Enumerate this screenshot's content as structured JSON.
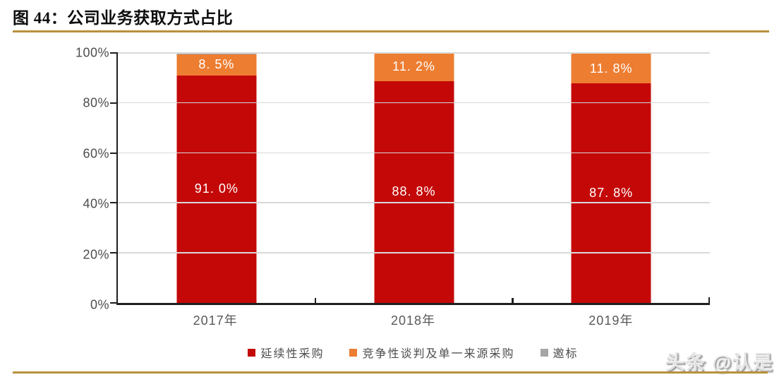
{
  "figure": {
    "title": "图 44：公司业务获取方式占比",
    "watermark": "头条 @认是"
  },
  "chart_data": {
    "type": "bar",
    "stacked": true,
    "title": "公司业务获取方式占比",
    "xlabel": "",
    "ylabel": "",
    "ylim": [
      0,
      100
    ],
    "grid": true,
    "legend_position": "bottom",
    "yticks": [
      "0%",
      "20%",
      "40%",
      "60%",
      "80%",
      "100%"
    ],
    "categories": [
      "2017年",
      "2018年",
      "2019年"
    ],
    "series": [
      {
        "name": "延续性采购",
        "color": "#c40808",
        "values": [
          91.0,
          88.8,
          87.8
        ],
        "labels": [
          "91. 0%",
          "88. 8%",
          "87. 8%"
        ]
      },
      {
        "name": "竞争性谈判及单一来源采购",
        "color": "#ed7d31",
        "values": [
          8.5,
          11.2,
          11.8
        ],
        "labels": [
          "8. 5%",
          "11. 2%",
          "11. 8%"
        ]
      },
      {
        "name": "邀标",
        "color": "#a6a6a6",
        "values": [
          0.5,
          0.0,
          0.4
        ],
        "labels": [
          "",
          "",
          ""
        ]
      }
    ]
  }
}
